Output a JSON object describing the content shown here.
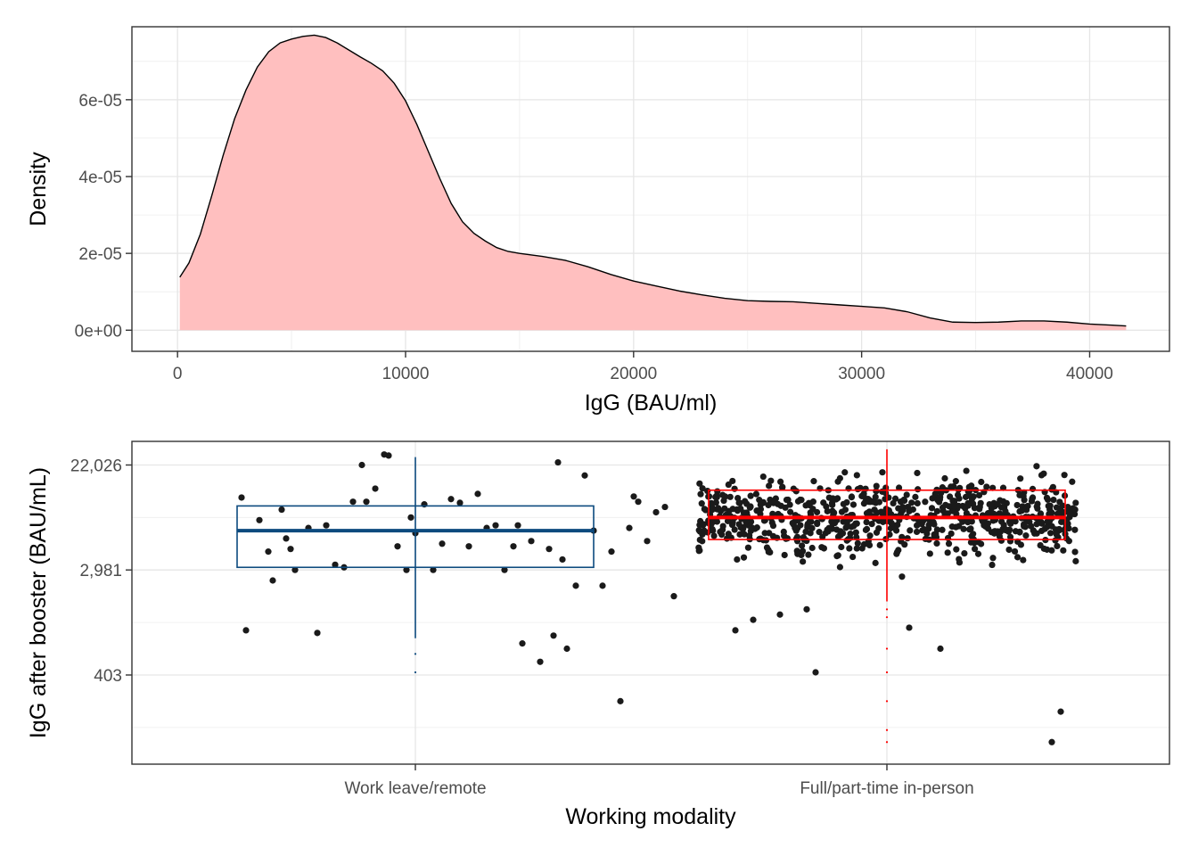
{
  "chart_data": [
    {
      "type": "area",
      "xlabel": "IgG (BAU/ml)",
      "ylabel": "Density",
      "xlim": [
        -2000,
        43500
      ],
      "ylim": [
        -5.5e-06,
        7.9e-05
      ],
      "x_ticks": [
        0,
        10000,
        20000,
        30000,
        40000
      ],
      "x_tick_labels": [
        "0",
        "10000",
        "20000",
        "30000",
        "40000"
      ],
      "y_ticks": [
        0,
        2e-05,
        4e-05,
        6e-05
      ],
      "y_tick_labels": [
        "0e+00",
        "2e-05",
        "4e-05",
        "6e-05"
      ],
      "grid": true,
      "fill_color": "#ffbfbf",
      "line_color": "#000000",
      "series": [
        {
          "x": [
            100,
            500,
            1000,
            1500,
            2000,
            2500,
            3000,
            3500,
            4000,
            4500,
            5000,
            5500,
            6000,
            6500,
            7000,
            7500,
            8000,
            8500,
            9000,
            9500,
            10000,
            10500,
            11000,
            11500,
            12000,
            12500,
            13000,
            13500,
            14000,
            14500,
            15000,
            16000,
            17000,
            18000,
            19000,
            20000,
            21000,
            22000,
            23000,
            24000,
            25000,
            26000,
            27000,
            28000,
            29000,
            30000,
            31000,
            32000,
            33000,
            34000,
            35000,
            36000,
            37000,
            38000,
            39000,
            40000,
            41000,
            41600
          ],
          "values": [
            1.38e-05,
            1.75e-05,
            2.5e-05,
            3.5e-05,
            4.55e-05,
            5.5e-05,
            6.25e-05,
            6.85e-05,
            7.25e-05,
            7.48e-05,
            7.58e-05,
            7.65e-05,
            7.68e-05,
            7.62e-05,
            7.48e-05,
            7.3e-05,
            7.12e-05,
            6.95e-05,
            6.75e-05,
            6.43e-05,
            5.97e-05,
            5.35e-05,
            4.65e-05,
            3.95e-05,
            3.3e-05,
            2.82e-05,
            2.52e-05,
            2.32e-05,
            2.15e-05,
            2.05e-05,
            2e-05,
            1.92e-05,
            1.82e-05,
            1.65e-05,
            1.45e-05,
            1.28e-05,
            1.15e-05,
            1.02e-05,
            9.2e-06,
            8.3e-06,
            7.7e-06,
            7.5e-06,
            7.4e-06,
            7e-06,
            6.6e-06,
            6.2e-06,
            5.8e-06,
            4.8e-06,
            3.2e-06,
            2.1e-06,
            2e-06,
            2.1e-06,
            2.4e-06,
            2.4e-06,
            2.1e-06,
            1.6e-06,
            1.3e-06,
            1.1e-06
          ]
        }
      ]
    },
    {
      "type": "scatter",
      "xlabel": "Working modality",
      "ylabel": "IgG after booster (BAU/mL)",
      "categories": [
        "Work leave/remote",
        "Full/part-time in-person"
      ],
      "y_scale": "log",
      "ylim_log": [
        4.3,
        10.45
      ],
      "y_ticks": [
        403,
        2981,
        22026
      ],
      "y_tick_labels": [
        "403",
        "2,981",
        "22,026"
      ],
      "grid": true,
      "colors": {
        "remote": "#0c4a7e",
        "in_person": "#ff0000",
        "points": "#1a1a1a"
      },
      "boxes": [
        {
          "category": "Work leave/remote",
          "log_q1": 8.05,
          "log_median": 8.75,
          "log_q3": 9.22,
          "log_whisker_low": 6.7,
          "log_whisker_high": 10.15,
          "log_outliers": [
            6.4,
            6.05
          ]
        },
        {
          "category": "Full/part-time in-person",
          "log_q1": 8.58,
          "log_median": 9.0,
          "log_q3": 9.52,
          "log_whisker_low": 7.4,
          "log_whisker_high": 10.3,
          "log_outliers": [
            7.25,
            7.1,
            6.5,
            6.05,
            5.5,
            4.95,
            4.72
          ]
        }
      ],
      "remote_points": [
        [
          -0.39,
          9.38
        ],
        [
          -0.38,
          6.85
        ],
        [
          -0.35,
          8.95
        ],
        [
          -0.33,
          8.35
        ],
        [
          -0.32,
          7.8
        ],
        [
          -0.3,
          9.15
        ],
        [
          -0.29,
          8.6
        ],
        [
          -0.28,
          8.4
        ],
        [
          -0.27,
          8.0
        ],
        [
          -0.24,
          8.8
        ],
        [
          -0.22,
          6.8
        ],
        [
          -0.2,
          8.85
        ],
        [
          -0.18,
          8.1
        ],
        [
          -0.16,
          8.05
        ],
        [
          -0.14,
          9.3
        ],
        [
          -0.12,
          10.0
        ],
        [
          -0.11,
          9.3
        ],
        [
          -0.09,
          9.55
        ],
        [
          -0.07,
          10.2
        ],
        [
          -0.06,
          10.18
        ],
        [
          -0.04,
          8.45
        ],
        [
          -0.02,
          8.0
        ],
        [
          -0.01,
          9.0
        ],
        [
          0.0,
          8.7
        ],
        [
          0.02,
          9.25
        ],
        [
          0.04,
          8.0
        ],
        [
          0.06,
          8.5
        ],
        [
          0.08,
          9.35
        ],
        [
          0.1,
          9.28
        ],
        [
          0.12,
          8.45
        ],
        [
          0.14,
          9.45
        ],
        [
          0.16,
          8.8
        ],
        [
          0.18,
          8.85
        ],
        [
          0.2,
          8.0
        ],
        [
          0.22,
          8.45
        ],
        [
          0.23,
          8.85
        ],
        [
          0.24,
          6.6
        ],
        [
          0.26,
          8.55
        ],
        [
          0.28,
          6.25
        ],
        [
          0.3,
          8.4
        ],
        [
          0.31,
          6.75
        ],
        [
          0.32,
          10.05
        ],
        [
          0.33,
          8.2
        ],
        [
          0.34,
          6.5
        ],
        [
          0.36,
          7.7
        ],
        [
          0.38,
          9.8
        ],
        [
          0.4,
          8.75
        ],
        [
          0.42,
          7.7
        ],
        [
          0.44,
          8.35
        ],
        [
          0.46,
          5.5
        ],
        [
          0.48,
          8.8
        ],
        [
          0.49,
          9.4
        ],
        [
          0.5,
          9.3
        ],
        [
          0.52,
          8.55
        ],
        [
          0.54,
          9.1
        ],
        [
          0.56,
          9.2
        ],
        [
          0.58,
          7.5
        ]
      ]
    }
  ]
}
